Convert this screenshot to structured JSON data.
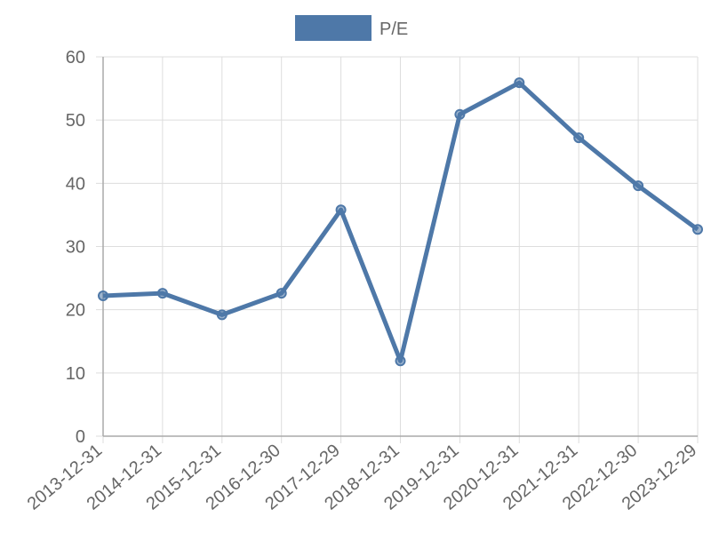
{
  "chart_data": {
    "type": "line",
    "categories": [
      "2013-12-31",
      "2014-12-31",
      "2015-12-31",
      "2016-12-30",
      "2017-12-29",
      "2018-12-31",
      "2019-12-31",
      "2020-12-31",
      "2021-12-31",
      "2022-12-30",
      "2023-12-29"
    ],
    "series": [
      {
        "name": "P/E",
        "color": "#4e78a8",
        "values": [
          22.2,
          22.6,
          19.2,
          22.6,
          35.8,
          11.9,
          50.9,
          55.9,
          47.2,
          39.6,
          32.7
        ]
      }
    ],
    "ylim": [
      0,
      60
    ],
    "yticks": [
      0,
      10,
      20,
      30,
      40,
      50,
      60
    ],
    "grid": true,
    "legend": "top"
  }
}
